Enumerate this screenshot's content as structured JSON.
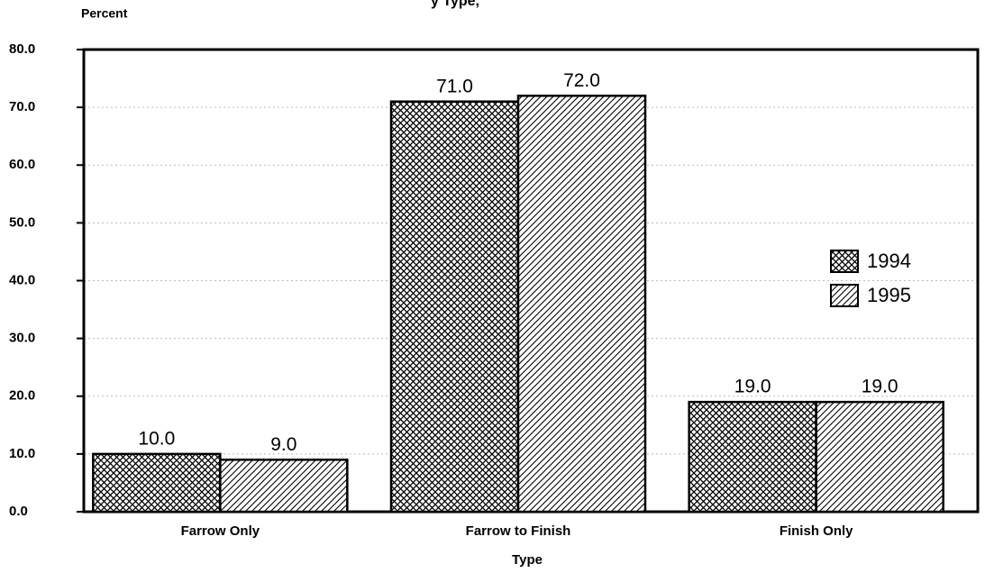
{
  "chart_data": {
    "type": "bar",
    "title": "y Type,",
    "y_label": "Percent",
    "x_label": "Type",
    "categories": [
      "Farrow Only",
      "Farrow to Finish",
      "Finish Only"
    ],
    "series": [
      {
        "name": "1994",
        "color": "#000000",
        "pattern": "crosshatch",
        "values": [
          10,
          71,
          19
        ],
        "value_labels": [
          "10.0",
          "71.0",
          "19.0"
        ]
      },
      {
        "name": "1995",
        "color": "#000000",
        "pattern": "diagonal",
        "values": [
          9,
          72,
          19
        ],
        "value_labels": [
          "9.0",
          "72.0",
          "19.0"
        ]
      }
    ],
    "ylim": [
      0,
      80
    ],
    "yticks": [
      {
        "value": 0,
        "label": "0.0"
      },
      {
        "value": 10,
        "label": "10.0"
      },
      {
        "value": 20,
        "label": "20.0"
      },
      {
        "value": 30,
        "label": "30.0"
      },
      {
        "value": 40,
        "label": "40.0"
      },
      {
        "value": 50,
        "label": "50.0"
      },
      {
        "value": 60,
        "label": "60.0"
      },
      {
        "value": 70,
        "label": "70.0"
      },
      {
        "value": 80,
        "label": "80.0"
      }
    ],
    "grid": true,
    "legend": "right"
  }
}
